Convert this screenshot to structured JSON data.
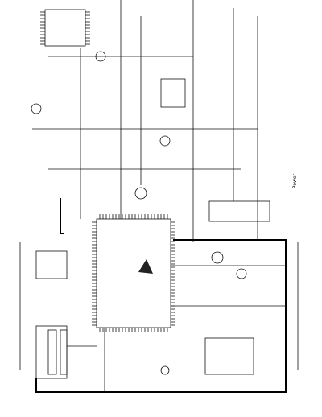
{
  "labels": {
    "side_note": "Power"
  }
}
